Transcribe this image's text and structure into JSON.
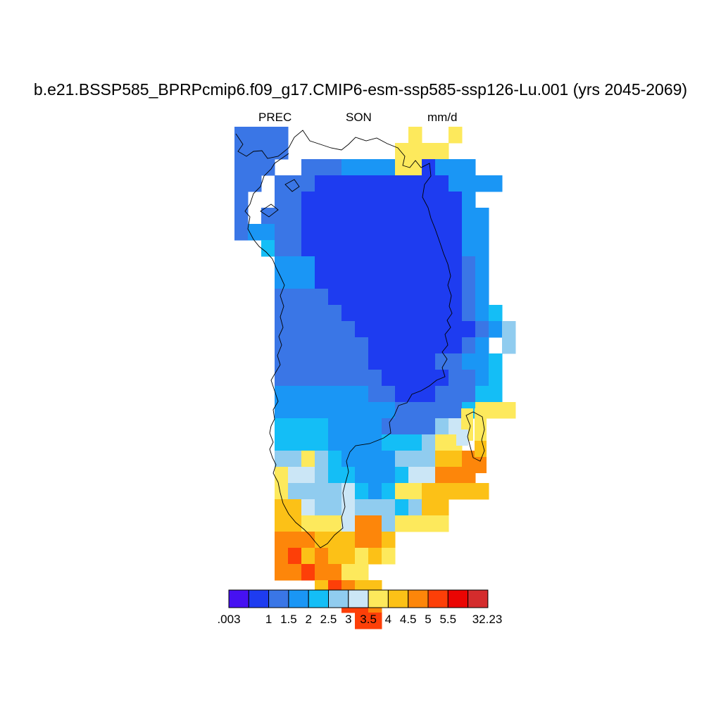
{
  "title": "b.e21.BSSP585_BPRPcmip6.f09_g17.CMIP6-esm-ssp585-ssp126-Lu.001 (yrs 2045-2069)",
  "subtitle": {
    "variable": "PREC",
    "season": "SON",
    "units": "mm/d"
  },
  "colorbar": {
    "colors": [
      "#4611f2",
      "#1e3cf0",
      "#3a76e6",
      "#1a96f5",
      "#14bef6",
      "#90ccef",
      "#cbe6f6",
      "#fde95c",
      "#fcc117",
      "#fd860a",
      "#fd3f08",
      "#ea0503",
      "#d42c2d"
    ],
    "tick_labels": [
      ".003",
      "1",
      "1.5",
      "2",
      "2.5",
      "3",
      "3.5",
      "4",
      "4.5",
      "5",
      "5.5",
      "32.23"
    ]
  },
  "map": {
    "region": "Greenland",
    "coastline": "Greenland",
    "value_range_mm_per_day": [
      0.003,
      32.23
    ],
    "pattern": "Interior ice sheet lowest (<1 mm/d); values increase toward the coast; southeast and southern tip highest (>5 mm/d)"
  }
}
